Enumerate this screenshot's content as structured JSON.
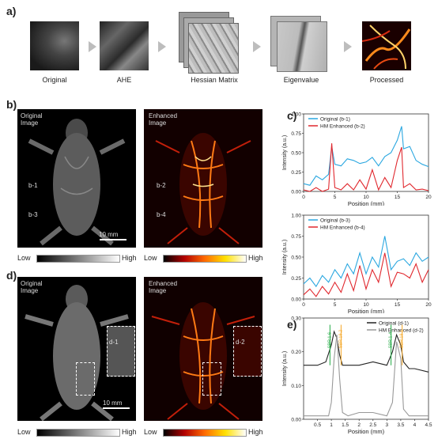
{
  "panel_letters": {
    "a": "a)",
    "b": "b)",
    "c": "c)",
    "d": "d)",
    "e": "e)"
  },
  "pipeline_labels": [
    "Original",
    "AHE",
    "Hessian Matrix",
    "Eigenvalue",
    "Processed"
  ],
  "b": {
    "left_title": "Original\nImage",
    "right_title": "Enhanced\nImage",
    "markers": [
      "b-1",
      "b-3",
      "b-2",
      "b-4"
    ],
    "scale": "10 mm"
  },
  "d": {
    "left_title": "Original\nImage",
    "right_title": "Enhanced\nImage",
    "markers": [
      "d-1",
      "d-2"
    ],
    "scale": "10 mm"
  },
  "colorbar": {
    "low": "Low",
    "high": "High"
  },
  "chart_data": [
    {
      "type": "line",
      "xlabel": "Position (mm)",
      "ylabel": "Intensity (a.u.)",
      "xlim": [
        0,
        20
      ],
      "ylim": [
        0,
        1.0
      ],
      "xticks": [
        "0",
        "5",
        "10",
        "15",
        "20"
      ],
      "yticks": [
        "0.00",
        "0.25",
        "0.50",
        "0.75",
        "1.00"
      ],
      "legend": "top-left",
      "series": [
        {
          "name": "Original (b-1)",
          "color": "#2aa7e0",
          "x": [
            0,
            1,
            2,
            3,
            4,
            4.5,
            5,
            6,
            7,
            8,
            9,
            10,
            11,
            12,
            13,
            14,
            15,
            15.7,
            16,
            17,
            18,
            19,
            20
          ],
          "values": [
            0.1,
            0.08,
            0.2,
            0.15,
            0.22,
            0.58,
            0.35,
            0.33,
            0.42,
            0.4,
            0.36,
            0.38,
            0.44,
            0.33,
            0.45,
            0.5,
            0.66,
            0.84,
            0.55,
            0.58,
            0.4,
            0.35,
            0.32
          ]
        },
        {
          "name": "HM Enhanced (b-2)",
          "color": "#e0282e",
          "x": [
            0,
            1,
            2,
            3,
            4,
            4.5,
            5,
            6,
            7,
            8,
            9,
            10,
            11,
            12,
            13,
            14,
            15,
            15.7,
            16,
            17,
            18,
            19,
            20
          ],
          "values": [
            0.02,
            0.0,
            0.05,
            0.0,
            0.03,
            0.62,
            0.05,
            0.02,
            0.1,
            0.02,
            0.15,
            0.03,
            0.28,
            0.02,
            0.18,
            0.05,
            0.4,
            0.57,
            0.05,
            0.1,
            0.02,
            0.03,
            0.01
          ]
        }
      ]
    },
    {
      "type": "line",
      "xlabel": "Position (mm)",
      "ylabel": "Intensity (a.u.)",
      "xlim": [
        0,
        20
      ],
      "ylim": [
        0,
        1.0
      ],
      "xticks": [
        "0",
        "5",
        "10",
        "15",
        "20"
      ],
      "yticks": [
        "0.00",
        "0.25",
        "0.50",
        "0.75",
        "1.00"
      ],
      "legend": "top-left",
      "series": [
        {
          "name": "Original (b-3)",
          "color": "#2aa7e0",
          "x": [
            0,
            1,
            2,
            3,
            4,
            5,
            6,
            7,
            8,
            9,
            10,
            11,
            12,
            13,
            14,
            15,
            16,
            17,
            18,
            19,
            20
          ],
          "values": [
            0.18,
            0.25,
            0.15,
            0.28,
            0.2,
            0.35,
            0.25,
            0.42,
            0.3,
            0.55,
            0.3,
            0.5,
            0.38,
            0.75,
            0.35,
            0.45,
            0.48,
            0.4,
            0.55,
            0.45,
            0.5
          ]
        },
        {
          "name": "HM Enhanced (b-4)",
          "color": "#e0282e",
          "x": [
            0,
            1,
            2,
            3,
            4,
            5,
            6,
            7,
            8,
            9,
            10,
            11,
            12,
            13,
            14,
            15,
            16,
            17,
            18,
            19,
            20
          ],
          "values": [
            0.05,
            0.12,
            0.03,
            0.15,
            0.06,
            0.2,
            0.08,
            0.3,
            0.1,
            0.4,
            0.12,
            0.35,
            0.2,
            0.55,
            0.15,
            0.32,
            0.3,
            0.25,
            0.42,
            0.2,
            0.35
          ]
        }
      ]
    },
    {
      "type": "line",
      "xlabel": "Position (mm)",
      "ylabel": "Intensity (a.u.)",
      "xlim": [
        0,
        4.5
      ],
      "ylim": [
        0,
        0.3
      ],
      "xticks": [
        "0.5",
        "1",
        "1.5",
        "2",
        "2.5",
        "3",
        "3.5",
        "4",
        "4.5"
      ],
      "yticks": [
        "0.00",
        "0.10",
        "0.20",
        "0.30"
      ],
      "legend": "top-right",
      "annotations": [
        "SBR:1.6",
        "SBR:19.2",
        "SBR:1.4",
        "SBR:18.1"
      ],
      "series": [
        {
          "name": "Original (d-1)",
          "color": "#222222",
          "x": [
            0,
            0.5,
            0.8,
            1.0,
            1.1,
            1.2,
            1.3,
            1.4,
            1.6,
            2.0,
            2.5,
            3.0,
            3.2,
            3.35,
            3.5,
            3.6,
            3.8,
            4.0,
            4.5
          ],
          "values": [
            0.16,
            0.16,
            0.17,
            0.22,
            0.26,
            0.24,
            0.19,
            0.16,
            0.16,
            0.16,
            0.17,
            0.16,
            0.2,
            0.25,
            0.22,
            0.17,
            0.15,
            0.15,
            0.14
          ]
        },
        {
          "name": "HM Enhanced (d-2)",
          "color": "#999999",
          "x": [
            0,
            0.5,
            0.9,
            1.0,
            1.1,
            1.2,
            1.3,
            1.4,
            1.6,
            2.0,
            2.5,
            3.0,
            3.2,
            3.35,
            3.5,
            3.6,
            3.8,
            4.0,
            4.5
          ],
          "values": [
            0.01,
            0.01,
            0.01,
            0.05,
            0.18,
            0.25,
            0.12,
            0.02,
            0.01,
            0.02,
            0.02,
            0.01,
            0.05,
            0.23,
            0.18,
            0.03,
            0.01,
            0.01,
            0.01
          ]
        }
      ]
    }
  ]
}
